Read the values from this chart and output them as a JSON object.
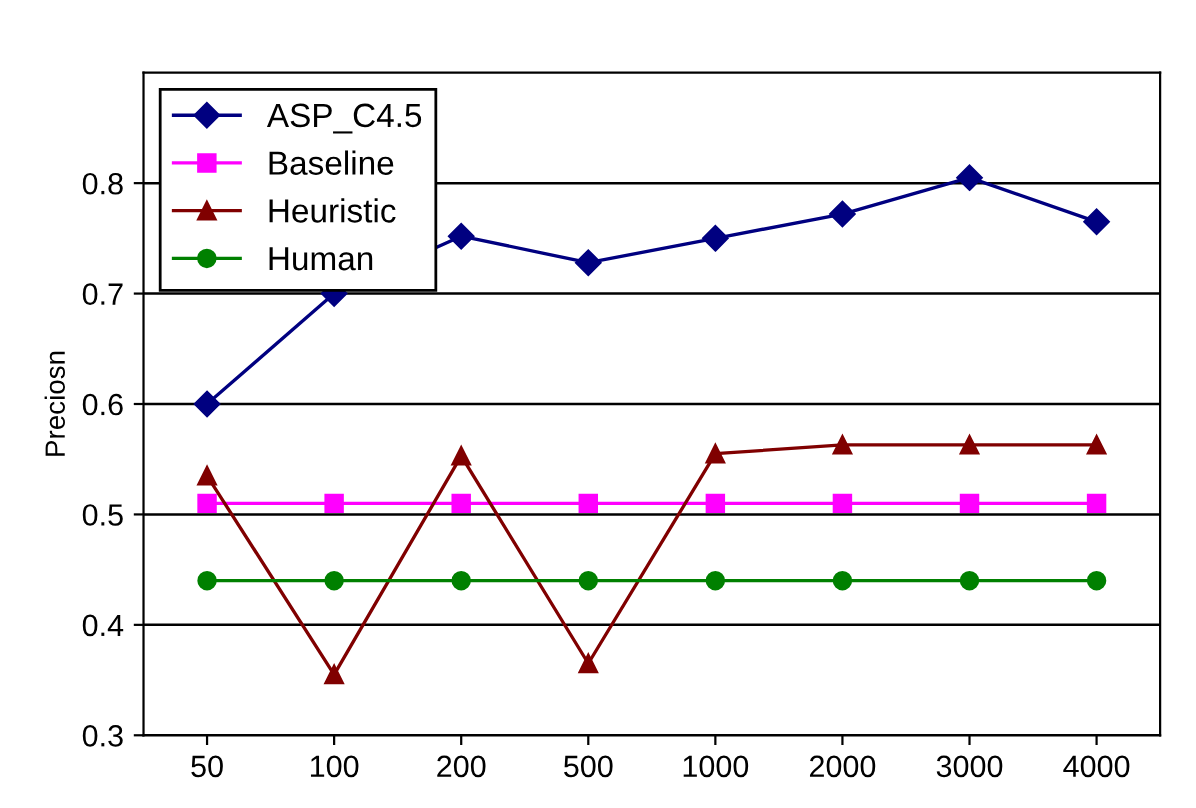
{
  "chart_data": {
    "type": "line",
    "ylabel": "Preciosn",
    "categories": [
      "50",
      "100",
      "200",
      "500",
      "1000",
      "2000",
      "3000",
      "4000"
    ],
    "series": [
      {
        "name": "ASP_C4.5",
        "color": "#000080",
        "marker": "diamond",
        "values": [
          0.6,
          0.7,
          0.752,
          0.728,
          0.75,
          0.772,
          0.805,
          0.765
        ]
      },
      {
        "name": "Baseline",
        "color": "#ff00ff",
        "marker": "square",
        "values": [
          0.51,
          0.51,
          0.51,
          0.51,
          0.51,
          0.51,
          0.51,
          0.51
        ]
      },
      {
        "name": "Heuristic",
        "color": "#800000",
        "marker": "triangle",
        "values": [
          0.535,
          0.355,
          0.553,
          0.365,
          0.555,
          0.563,
          0.563,
          0.563
        ]
      },
      {
        "name": "Human",
        "color": "#008000",
        "marker": "circle",
        "values": [
          0.44,
          0.44,
          0.44,
          0.44,
          0.44,
          0.44,
          0.44,
          0.44
        ]
      }
    ],
    "ylim": [
      0.3,
      0.9
    ],
    "yticks": [
      0.3,
      0.4,
      0.5,
      0.6,
      0.7,
      0.8
    ],
    "grid": "y",
    "legend": "top left"
  }
}
